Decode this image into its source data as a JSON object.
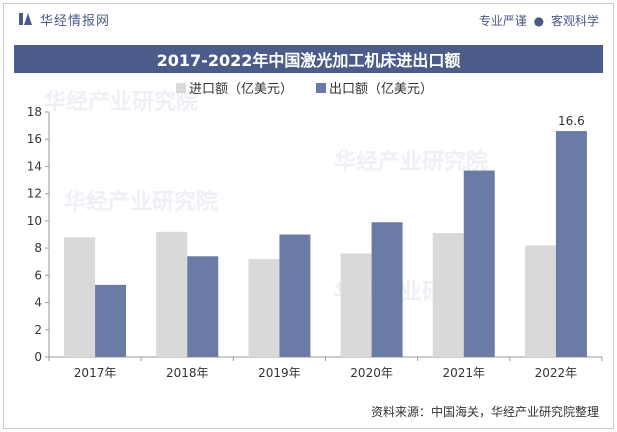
{
  "header": {
    "brand": "华经情报网",
    "slogan_left": "专业严谨",
    "slogan_right": "客观科学"
  },
  "chart_data": {
    "type": "bar",
    "title": "2017-2022年中国激光加工机床进出口额",
    "categories": [
      "2017年",
      "2018年",
      "2019年",
      "2020年",
      "2021年",
      "2022年"
    ],
    "series": [
      {
        "name": "进口额（亿美元）",
        "color": "#d9d9d9",
        "values": [
          8.8,
          9.2,
          7.2,
          7.6,
          9.1,
          8.2
        ]
      },
      {
        "name": "出口额（亿美元）",
        "color": "#6a7ba6",
        "values": [
          5.3,
          7.4,
          9.0,
          9.9,
          13.7,
          16.6
        ]
      }
    ],
    "yticks": [
      0,
      2,
      4,
      6,
      8,
      10,
      12,
      14,
      16,
      18
    ],
    "ylim": [
      0,
      18
    ],
    "data_labels": [
      {
        "series": 1,
        "index": 5,
        "text": "16.6"
      }
    ],
    "legend_position": "top-center",
    "grid": false
  },
  "footer": {
    "source": "资料来源：中国海关，华经产业研究院整理"
  },
  "watermark": "华经产业研究院"
}
